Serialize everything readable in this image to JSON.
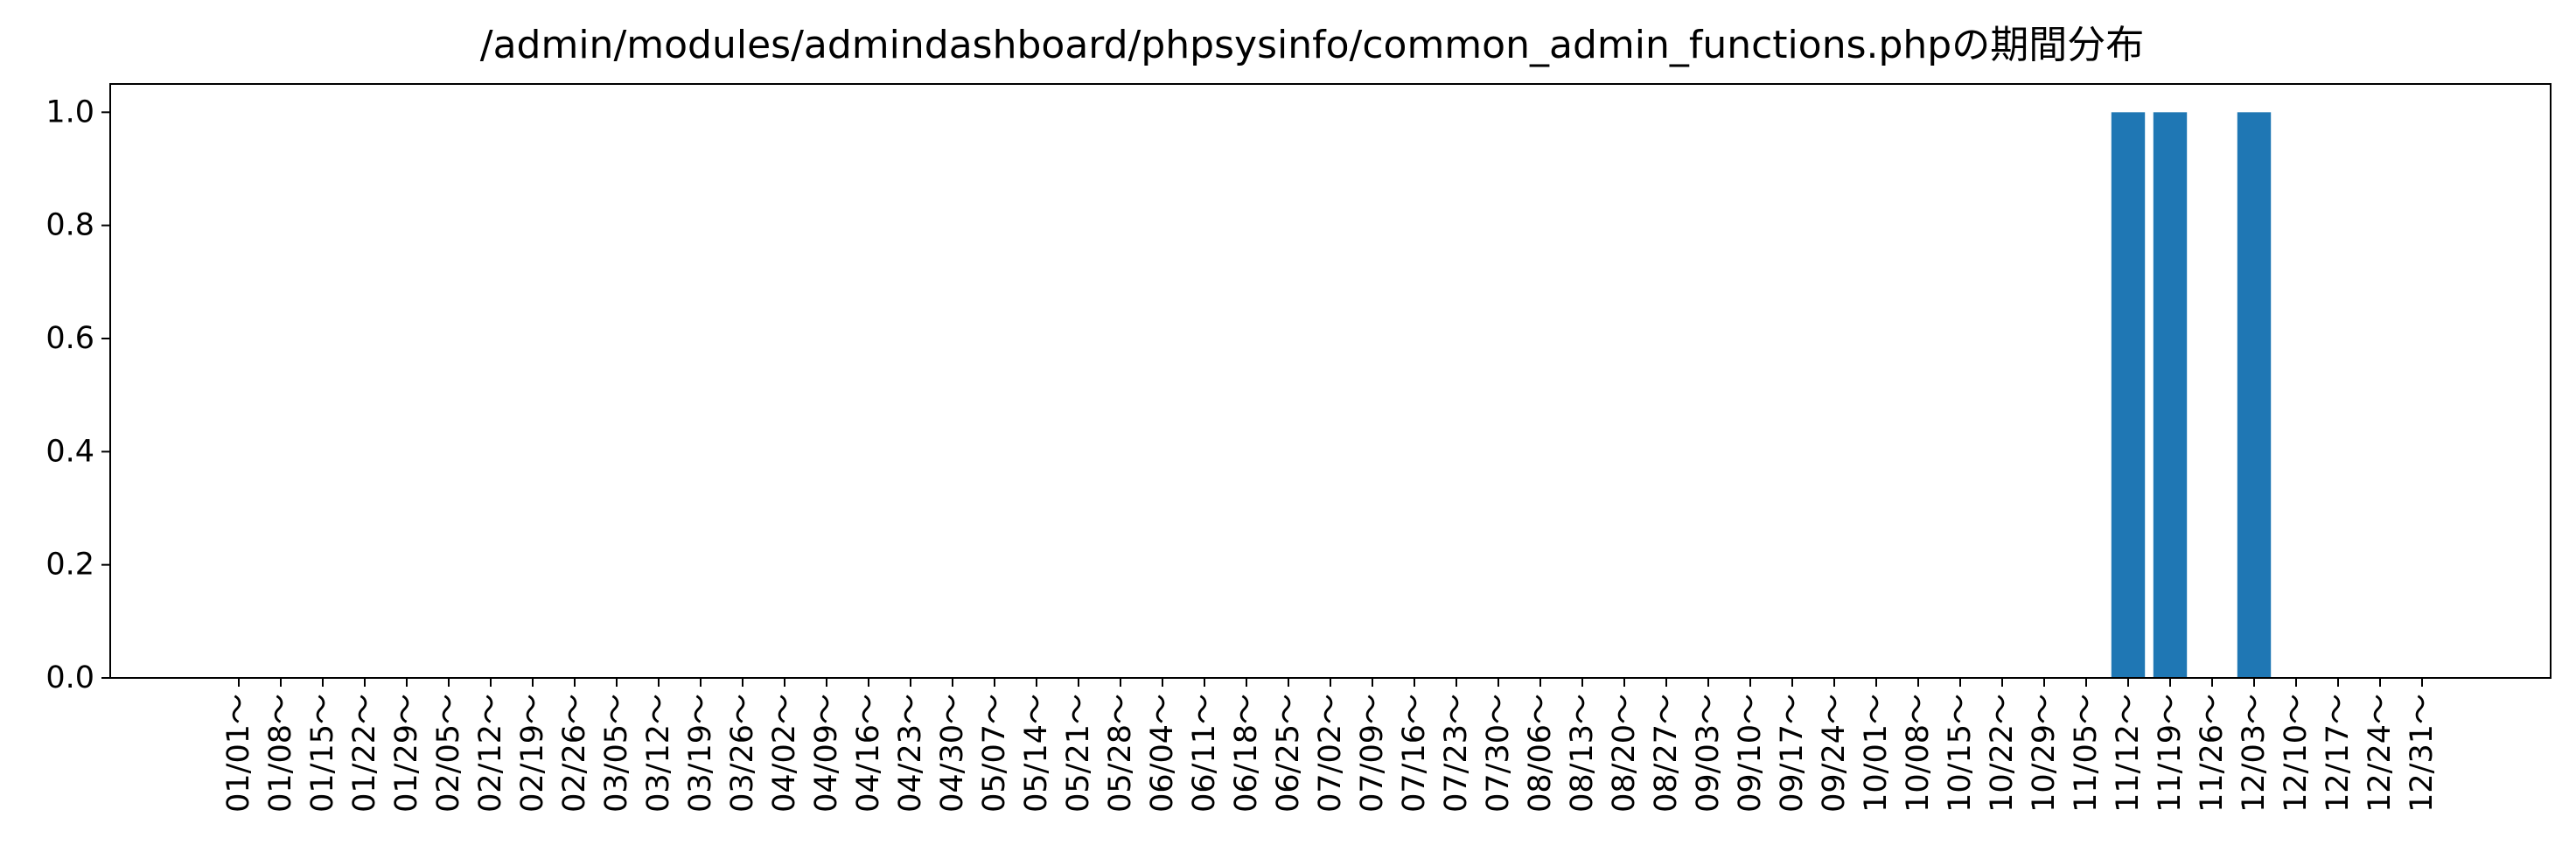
{
  "chart_data": {
    "type": "bar",
    "title": "/admin/modules/admindashboard/phpsysinfo/common_admin_functions.phpの期間分布",
    "xlabel": "",
    "ylabel": "",
    "ylim": [
      0,
      1.05
    ],
    "yticks": [
      "0.0",
      "0.2",
      "0.4",
      "0.6",
      "0.8",
      "1.0"
    ],
    "grid": false,
    "bar_color": "#1f77b4",
    "categories": [
      "01/01～",
      "01/08～",
      "01/15～",
      "01/22～",
      "01/29～",
      "02/05～",
      "02/12～",
      "02/19～",
      "02/26～",
      "03/05～",
      "03/12～",
      "03/19～",
      "03/26～",
      "04/02～",
      "04/09～",
      "04/16～",
      "04/23～",
      "04/30～",
      "05/07～",
      "05/14～",
      "05/21～",
      "05/28～",
      "06/04～",
      "06/11～",
      "06/18～",
      "06/25～",
      "07/02～",
      "07/09～",
      "07/16～",
      "07/23～",
      "07/30～",
      "08/06～",
      "08/13～",
      "08/20～",
      "08/27～",
      "09/03～",
      "09/10～",
      "09/17～",
      "09/24～",
      "10/01～",
      "10/08～",
      "10/15～",
      "10/22～",
      "10/29～",
      "11/05～",
      "11/12～",
      "11/19～",
      "11/26～",
      "12/03～",
      "12/10～",
      "12/17～",
      "12/24～",
      "12/31～"
    ],
    "values": [
      0,
      0,
      0,
      0,
      0,
      0,
      0,
      0,
      0,
      0,
      0,
      0,
      0,
      0,
      0,
      0,
      0,
      0,
      0,
      0,
      0,
      0,
      0,
      0,
      0,
      0,
      0,
      0,
      0,
      0,
      0,
      0,
      0,
      0,
      0,
      0,
      0,
      0,
      0,
      0,
      0,
      0,
      0,
      0,
      0,
      1,
      1,
      0,
      1,
      0,
      0,
      0,
      0
    ]
  }
}
